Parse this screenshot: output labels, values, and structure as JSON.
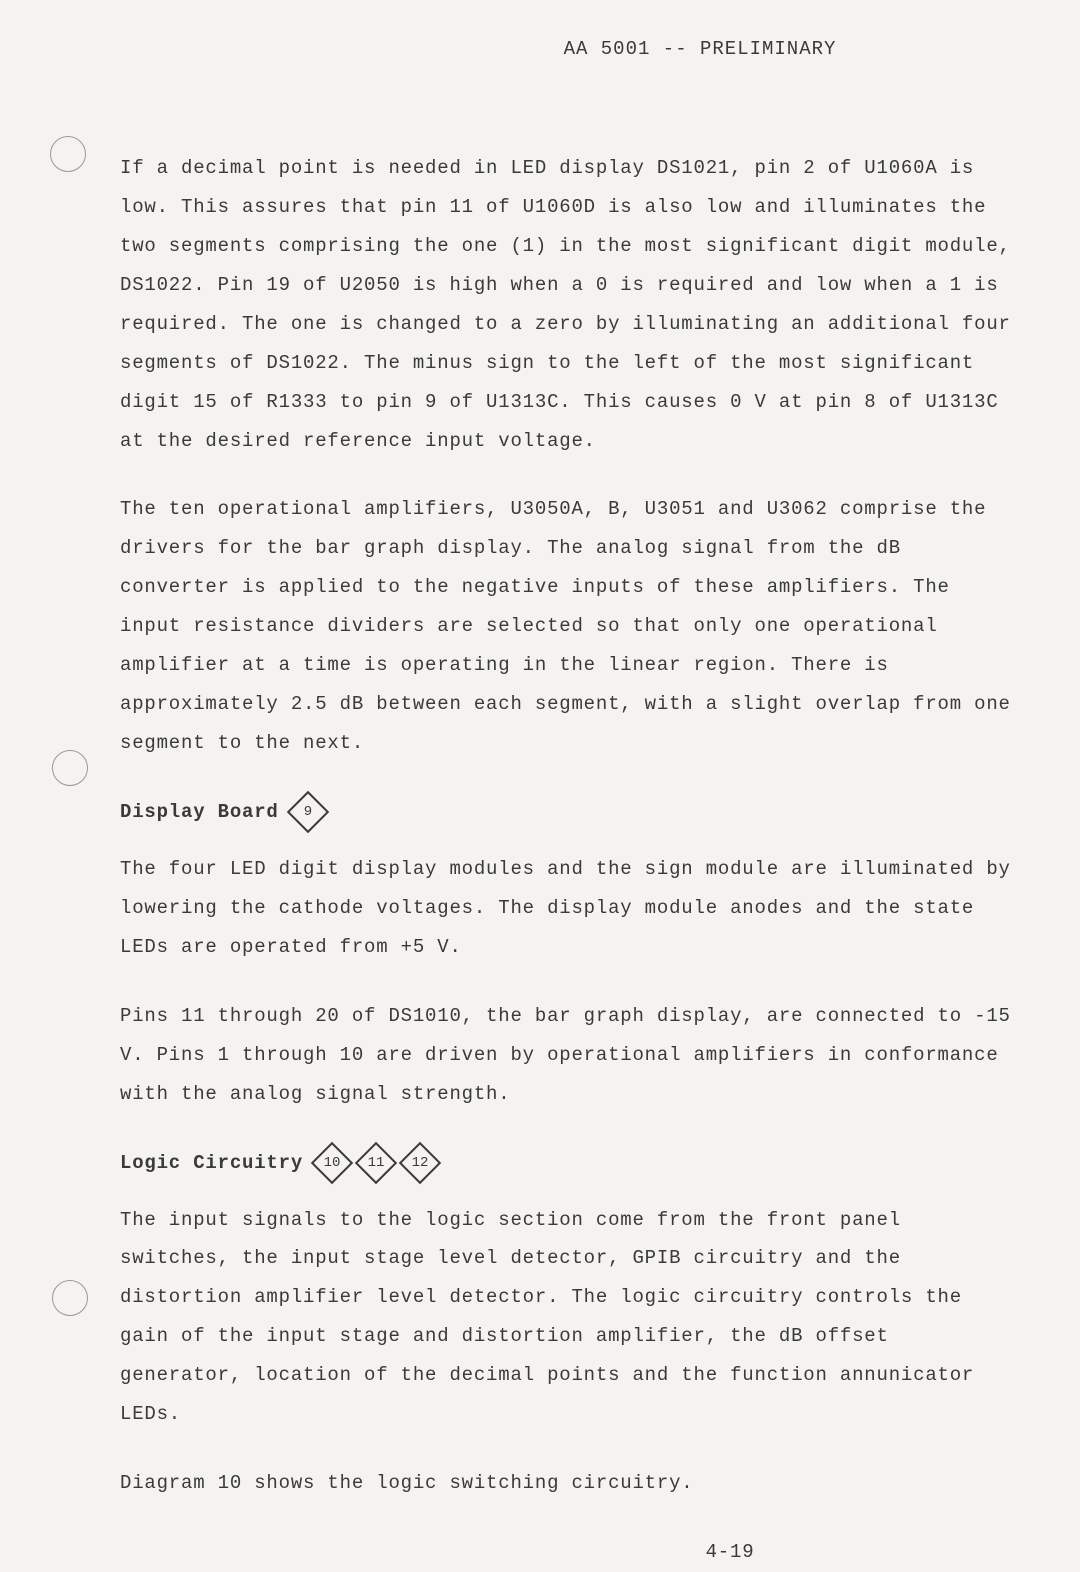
{
  "header": "AA 5001 -- PRELIMINARY",
  "paragraphs": {
    "p1": "If a decimal point is needed in LED display DS1021, pin 2 of U1060A is low. This assures that pin 11 of U1060D is also low and illuminates the two segments comprising the one (1) in the most significant digit module, DS1022. Pin 19 of U2050 is high when a 0 is required and low when a 1 is required. The one is changed to a zero by illuminating an additional four segments of DS1022. The minus sign to the left of the most significant digit 15 of R1333 to pin 9 of U1313C. This causes 0 V at pin 8 of U1313C at the desired reference input voltage.",
    "p2": "The ten operational amplifiers, U3050A, B, U3051 and U3062 comprise the drivers for the bar graph display. The analog signal from the dB converter is applied to the negative inputs of these amplifiers. The input resistance dividers are selected so that only one operational amplifier at a time is operating in the linear region. There is approximately 2.5 dB between each segment, with a slight overlap from one segment to the next.",
    "p3": "The four LED digit display modules and the sign module are illuminated by lowering the cathode voltages. The display module anodes and the state LEDs are operated from +5 V.",
    "p4": "Pins 11 through 20 of DS1010, the bar graph display, are connected to -15 V. Pins 1 through 10 are driven by operational amplifiers in conformance with the analog signal strength.",
    "p5": "The input signals to the logic section come from the front panel switches, the input stage level detector, GPIB circuitry and the distortion amplifier level detector. The logic circuitry controls the gain of the input stage and distortion amplifier, the dB offset generator, location of the decimal points and the function annunicator LEDs.",
    "p6": "Diagram 10 shows the logic switching circuitry."
  },
  "headings": {
    "display_board": "Display Board",
    "logic_circuitry": "Logic Circuitry"
  },
  "diamond_refs": {
    "d9": "9",
    "d10": "10",
    "d11": "11",
    "d12": "12"
  },
  "page_number": "4-19"
}
